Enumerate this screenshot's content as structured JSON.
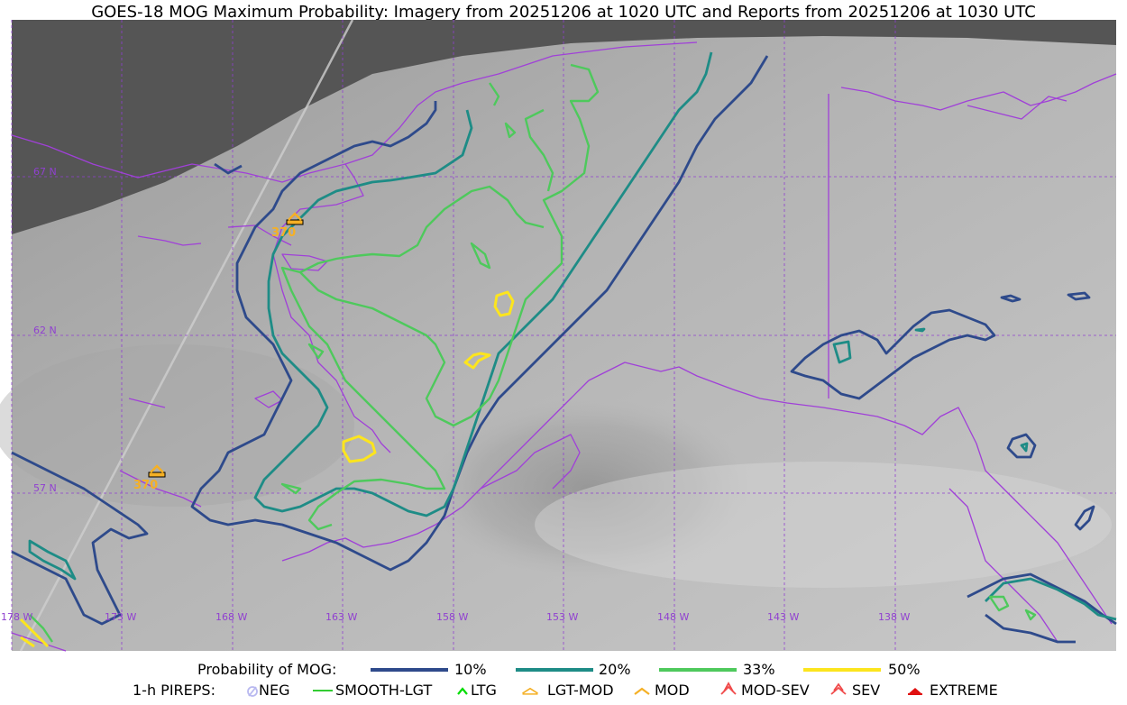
{
  "title": "GOES-18 MOG Maximum Probability: Imagery from 20251206 at 1020 UTC and Reports from 20251206 at 1030 UTC",
  "grid": {
    "lat_labels": [
      "67 N",
      "62 N",
      "57 N"
    ],
    "lon_labels": [
      "178 W",
      "173 W",
      "168 W",
      "163 W",
      "158 W",
      "153 W",
      "148 W",
      "143 W",
      "138 W"
    ]
  },
  "reports": [
    {
      "label": "370",
      "category": "MOD"
    },
    {
      "label": "370",
      "category": "MOD"
    }
  ],
  "legend": {
    "probability_title": "Probability of MOG:",
    "probability_levels": [
      {
        "label": "10%",
        "color": "#2e4a8b"
      },
      {
        "label": "20%",
        "color": "#1e8c86"
      },
      {
        "label": "33%",
        "color": "#4ec95c"
      },
      {
        "label": "50%",
        "color": "#fce51e"
      }
    ],
    "pireps_title": "1-h PIREPS:",
    "pireps": [
      {
        "label": "NEG",
        "icon": "neg-icon",
        "color": "#b9b9f0"
      },
      {
        "label": "SMOOTH-LGT",
        "icon": "smooth-lgt-line-icon",
        "color": "#33cc33"
      },
      {
        "label": "LTG",
        "icon": "ltg-icon",
        "color": "#00dd00"
      },
      {
        "label": "LGT-MOD",
        "icon": "lgt-mod-icon",
        "color": "#f5b025"
      },
      {
        "label": "MOD",
        "icon": "mod-icon",
        "color": "#f5b025"
      },
      {
        "label": "MOD-SEV",
        "icon": "mod-sev-icon",
        "color": "#f04a4a"
      },
      {
        "label": "SEV",
        "icon": "sev-icon",
        "color": "#f04a4a"
      },
      {
        "label": "EXTREME",
        "icon": "extreme-icon",
        "color": "#e01010"
      }
    ]
  },
  "colors": {
    "coastline": "#a040d8",
    "grid": "#9040d0",
    "space": "#555555",
    "report_label": "#f5b025"
  }
}
